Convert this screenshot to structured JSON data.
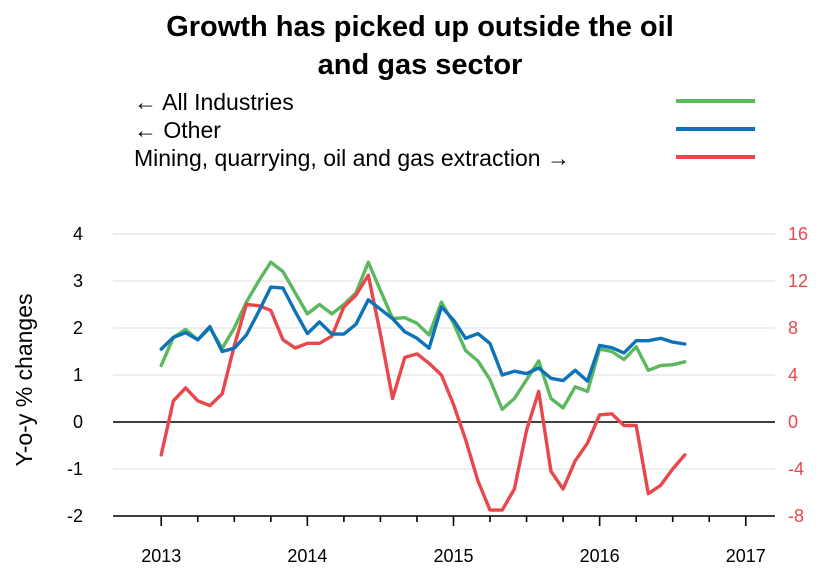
{
  "chart_data": {
    "type": "line",
    "title_line1": "Growth has picked up outside the oil",
    "title_line2": "and gas sector",
    "ylabel": "Y-o-y % changes",
    "ylim_left": [
      -2,
      4
    ],
    "ylim_right": [
      -8,
      16
    ],
    "yticks_left": [
      "-2",
      "-1",
      "0",
      "1",
      "2",
      "3",
      "4"
    ],
    "yticks_right": [
      "-8",
      "-4",
      "0",
      "4",
      "8",
      "12",
      "16"
    ],
    "xlim": [
      2012.67,
      2017.2
    ],
    "xticks": [
      "2013",
      "2014",
      "2015",
      "2016",
      "2017"
    ],
    "grid": true,
    "legend_position": "top",
    "series": [
      {
        "name": "All Industries",
        "legend_label": "← All Industries",
        "axis": "left",
        "color": "#5cb85c",
        "x": [
          2013.0,
          2013.083,
          2013.167,
          2013.25,
          2013.333,
          2013.417,
          2013.5,
          2013.583,
          2013.667,
          2013.75,
          2013.833,
          2013.917,
          2014.0,
          2014.083,
          2014.167,
          2014.25,
          2014.333,
          2014.417,
          2014.5,
          2014.583,
          2014.667,
          2014.75,
          2014.833,
          2014.917,
          2015.0,
          2015.083,
          2015.167,
          2015.25,
          2015.333,
          2015.417,
          2015.5,
          2015.583,
          2015.667,
          2015.75,
          2015.833,
          2015.917,
          2016.0,
          2016.083,
          2016.167,
          2016.25,
          2016.333,
          2016.417,
          2016.5,
          2016.583
        ],
        "values": [
          1.2,
          1.8,
          1.97,
          1.75,
          2.0,
          1.57,
          2.0,
          2.55,
          3.0,
          3.4,
          3.2,
          2.75,
          2.3,
          2.5,
          2.3,
          2.5,
          2.75,
          3.4,
          2.8,
          2.2,
          2.22,
          2.1,
          1.85,
          2.55,
          2.1,
          1.52,
          1.3,
          0.9,
          0.27,
          0.5,
          0.9,
          1.3,
          0.5,
          0.3,
          0.75,
          0.65,
          1.55,
          1.5,
          1.33,
          1.6,
          1.1,
          1.2,
          1.22,
          1.28
        ]
      },
      {
        "name": "Other",
        "legend_label": "← Other",
        "axis": "left",
        "color": "#0d72b8",
        "x": [
          2013.0,
          2013.083,
          2013.167,
          2013.25,
          2013.333,
          2013.417,
          2013.5,
          2013.583,
          2013.667,
          2013.75,
          2013.833,
          2013.917,
          2014.0,
          2014.083,
          2014.167,
          2014.25,
          2014.333,
          2014.417,
          2014.5,
          2014.583,
          2014.667,
          2014.75,
          2014.833,
          2014.917,
          2015.0,
          2015.083,
          2015.167,
          2015.25,
          2015.333,
          2015.417,
          2015.5,
          2015.583,
          2015.667,
          2015.75,
          2015.833,
          2015.917,
          2016.0,
          2016.083,
          2016.167,
          2016.25,
          2016.333,
          2016.417,
          2016.5,
          2016.583
        ],
        "values": [
          1.55,
          1.8,
          1.9,
          1.75,
          2.03,
          1.5,
          1.57,
          1.85,
          2.35,
          2.87,
          2.85,
          2.35,
          1.88,
          2.13,
          1.87,
          1.87,
          2.08,
          2.6,
          2.4,
          2.2,
          1.92,
          1.78,
          1.57,
          2.45,
          2.17,
          1.78,
          1.88,
          1.67,
          1.0,
          1.08,
          1.03,
          1.15,
          0.93,
          0.88,
          1.1,
          0.87,
          1.63,
          1.58,
          1.47,
          1.73,
          1.73,
          1.78,
          1.7,
          1.66
        ]
      },
      {
        "name": "Mining, quarrying, oil and gas extraction",
        "legend_label": "Mining, quarrying, oil and gas extraction →",
        "axis": "right",
        "color": "#e8474c",
        "x": [
          2013.0,
          2013.083,
          2013.167,
          2013.25,
          2013.333,
          2013.417,
          2013.5,
          2013.583,
          2013.667,
          2013.75,
          2013.833,
          2013.917,
          2014.0,
          2014.083,
          2014.167,
          2014.25,
          2014.333,
          2014.417,
          2014.5,
          2014.583,
          2014.667,
          2014.75,
          2014.833,
          2014.917,
          2015.0,
          2015.083,
          2015.167,
          2015.25,
          2015.333,
          2015.417,
          2015.5,
          2015.583,
          2015.667,
          2015.75,
          2015.833,
          2015.917,
          2016.0,
          2016.083,
          2016.167,
          2016.25,
          2016.333,
          2016.417,
          2016.5,
          2016.583
        ],
        "values": [
          -2.8,
          1.8,
          2.9,
          1.8,
          1.4,
          2.4,
          6.5,
          10.0,
          9.9,
          9.5,
          7.0,
          6.3,
          6.7,
          6.7,
          7.3,
          9.8,
          10.8,
          12.5,
          7.5,
          2.0,
          5.5,
          5.8,
          5.0,
          4.0,
          1.5,
          -1.5,
          -5.0,
          -7.5,
          -7.5,
          -5.7,
          -0.7,
          2.6,
          -4.2,
          -5.7,
          -3.3,
          -1.8,
          0.6,
          0.7,
          -0.3,
          -0.3,
          -6.1,
          -5.4,
          -4.0,
          -2.8
        ]
      }
    ]
  }
}
